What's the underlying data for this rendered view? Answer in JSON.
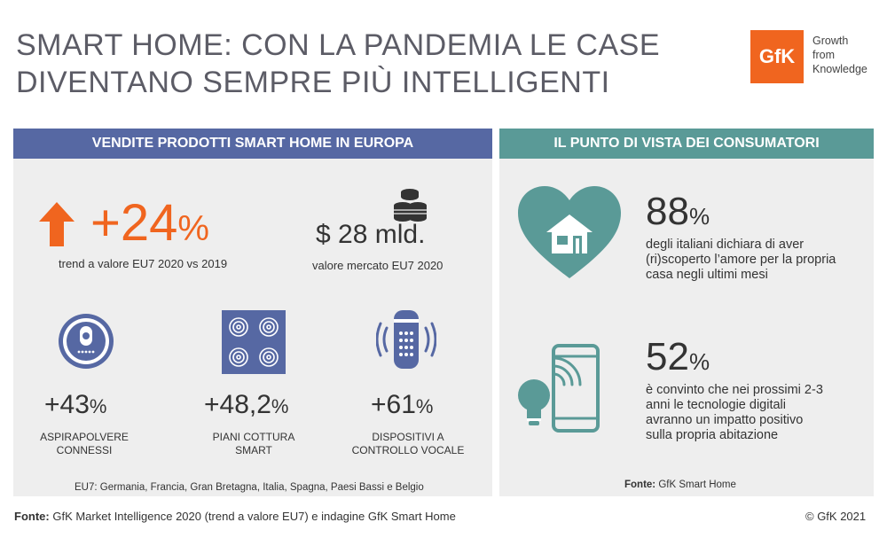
{
  "title_line1": "SMART HOME: CON LA PANDEMIA LE CASE",
  "title_line2": "DIVENTANO SEMPRE PIÙ INTELLIGENTI",
  "logo": {
    "mark": "GfK",
    "tag_line1": "Growth",
    "tag_line2": "from",
    "tag_line3": "Knowledge",
    "color": "#f0651f"
  },
  "left_panel": {
    "header": "VENDITE PRODOTTI SMART HOME IN EUROPA",
    "trend": {
      "value": "+24",
      "unit": "%",
      "label": "trend a valore EU7 2020 vs 2019",
      "icon": "arrow-up-icon"
    },
    "market": {
      "value": "$ 28 mld.",
      "label": "valore mercato EU7 2020",
      "icon": "coins-icon"
    },
    "products": [
      {
        "value": "+43",
        "unit": "%",
        "line1": "ASPIRAPOLVERE",
        "line2": "CONNESSI",
        "icon": "robot-vacuum-icon"
      },
      {
        "value": "+48,2",
        "unit": "%",
        "line1": "PIANI COTTURA",
        "line2": "SMART",
        "icon": "cooktop-icon"
      },
      {
        "value": "+61",
        "unit": "%",
        "line1": "DISPOSITIVI A",
        "line2": "CONTROLLO VOCALE",
        "icon": "smart-speaker-icon"
      }
    ],
    "note": "EU7: Germania, Francia, Gran Bretagna, Italia, Spagna, Paesi Bassi e Belgio"
  },
  "right_panel": {
    "header": "IL PUNTO DI VISTA DEI CONSUMATORI",
    "stats": [
      {
        "value": "88",
        "unit": "%",
        "lines": [
          "degli italiani dichiara di aver",
          "(ri)scoperto l’amore per la propria",
          "casa negli ultimi mesi"
        ],
        "icon": "heart-house-icon"
      },
      {
        "value": "52",
        "unit": "%",
        "lines": [
          "è convinto che nei prossimi 2-3",
          "anni le tecnologie digitali",
          "avranno un impatto positivo",
          "sulla propria abitazione"
        ],
        "icon": "phone-bulb-icon"
      }
    ],
    "source_label": "Fonte:",
    "source_text": "GfK Smart Home"
  },
  "footer": {
    "source_label": "Fonte:",
    "source_text": "GfK Market Intelligence 2020 (trend a valore EU7) e indagine GfK Smart Home",
    "copyright": "© GfK 2021"
  },
  "colors": {
    "left_header": "#5668a3",
    "right_header": "#5a9a97",
    "accent": "#f0651f",
    "icon_blue": "#5668a3",
    "icon_teal": "#5a9a97"
  }
}
